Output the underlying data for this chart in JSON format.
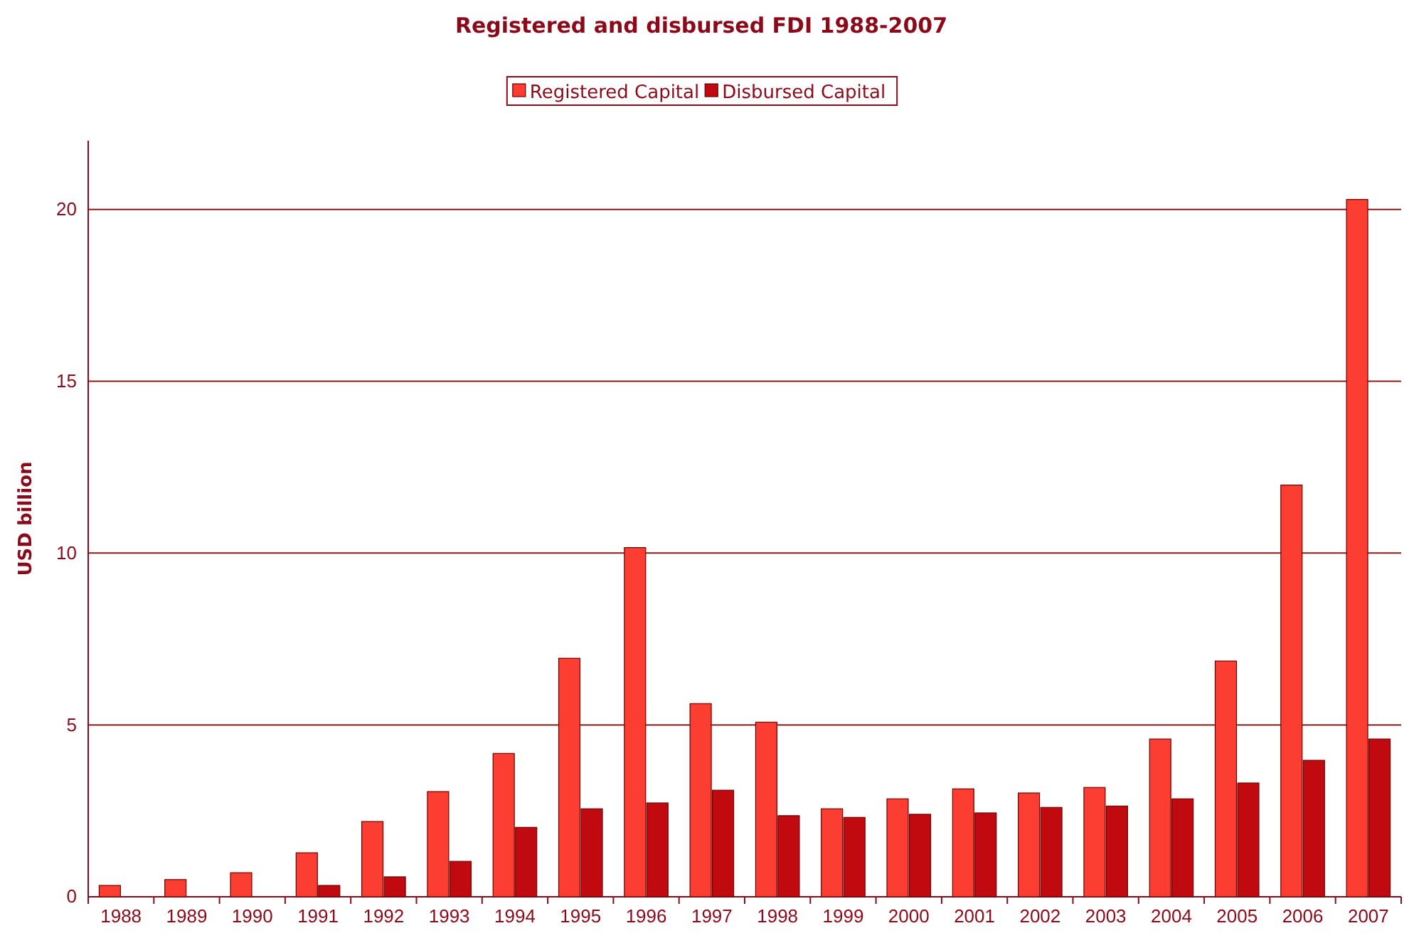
{
  "chart_data": {
    "type": "bar",
    "title": "Registered and disbursed FDI 1988-2007",
    "ylabel": "USD billion",
    "categories": [
      "1988",
      "1989",
      "1990",
      "1991",
      "1992",
      "1993",
      "1994",
      "1995",
      "1996",
      "1997",
      "1998",
      "1999",
      "2000",
      "2001",
      "2002",
      "2003",
      "2004",
      "2005",
      "2006",
      "2007"
    ],
    "series": [
      {
        "name": "Registered Capital",
        "color": "#fc3d32",
        "values": [
          0.33,
          0.5,
          0.7,
          1.28,
          2.19,
          3.06,
          4.17,
          6.94,
          10.16,
          5.62,
          5.08,
          2.56,
          2.85,
          3.14,
          3.02,
          3.18,
          4.59,
          6.86,
          11.98,
          20.29
        ]
      },
      {
        "name": "Disbursed Capital",
        "color": "#c00a10",
        "values": [
          null,
          null,
          null,
          0.33,
          0.58,
          1.03,
          2.02,
          2.56,
          2.73,
          3.1,
          2.36,
          2.31,
          2.4,
          2.44,
          2.6,
          2.64,
          2.85,
          3.31,
          3.97,
          4.59
        ]
      }
    ],
    "ylim": [
      0,
      22
    ],
    "yticks": [
      0,
      5,
      10,
      15,
      20
    ],
    "grid": "y",
    "legend": "top"
  }
}
